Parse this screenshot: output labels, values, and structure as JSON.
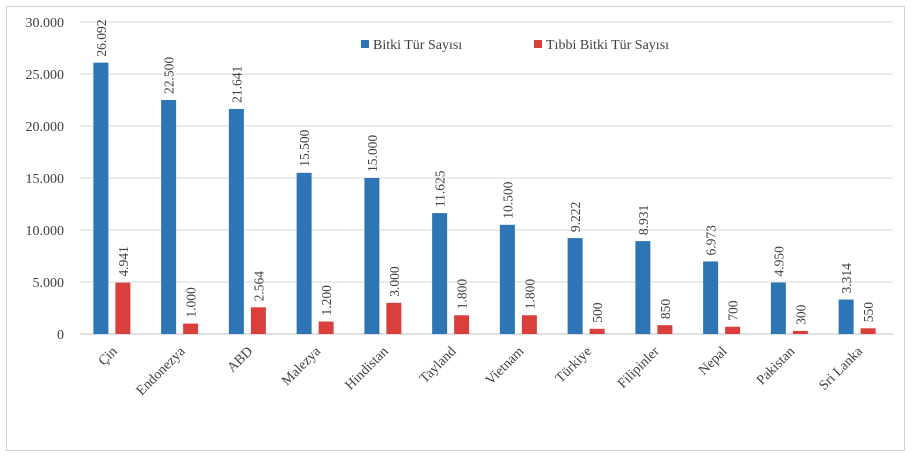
{
  "chart_data": {
    "type": "bar",
    "title": "",
    "xlabel": "",
    "ylabel": "",
    "ylim": [
      0,
      30000
    ],
    "y_ticks": [
      "0",
      "5.000",
      "10.000",
      "15.000",
      "20.000",
      "25.000",
      "30.000"
    ],
    "grid": true,
    "legend_position": "top-right",
    "categories": [
      "Çin",
      "Endonezya",
      "ABD",
      "Malezya",
      "Hindistan",
      "Tayland",
      "Vietnam",
      "Türkiye",
      "Filipinler",
      "Nepal",
      "Pakistan",
      "Sri Lanka"
    ],
    "series": [
      {
        "name": "Bitki Tür Sayısı",
        "color": "#2e75b6",
        "values": [
          26092,
          22500,
          21641,
          15500,
          15000,
          11625,
          10500,
          9222,
          8931,
          6973,
          4950,
          3314
        ],
        "labels": [
          "26.092",
          "22.500",
          "21.641",
          "15.500",
          "15.000",
          "11.625",
          "10.500",
          "9.222",
          "8.931",
          "6.973",
          "4.950",
          "3.314"
        ]
      },
      {
        "name": "Tıbbi Bitki Tür Sayısı",
        "color": "#d9403b",
        "values": [
          4941,
          1000,
          2564,
          1200,
          3000,
          1800,
          1800,
          500,
          850,
          700,
          300,
          550
        ],
        "labels": [
          "4.941",
          "1.000",
          "2.564",
          "1.200",
          "3.000",
          "1.800",
          "1.800",
          "500",
          "850",
          "700",
          "300",
          "550"
        ]
      }
    ]
  }
}
